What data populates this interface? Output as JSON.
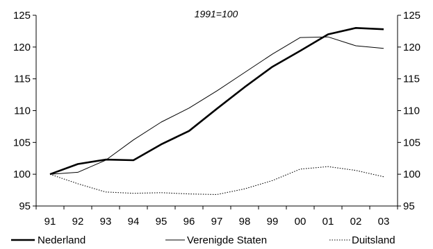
{
  "chart_data": {
    "type": "line",
    "subtitle": "1991=100",
    "x": [
      "91",
      "92",
      "93",
      "94",
      "95",
      "96",
      "97",
      "98",
      "99",
      "00",
      "01",
      "02",
      "03"
    ],
    "ylim": [
      95,
      125
    ],
    "yticks": [
      95,
      100,
      105,
      110,
      115,
      120,
      125
    ],
    "ylabels": [
      "95",
      "100",
      "105",
      "110",
      "115",
      "120",
      "125"
    ],
    "grid": false,
    "legend_position": "bottom",
    "series": [
      {
        "name": "Nederland",
        "style": "thick-solid",
        "color": "#000000",
        "values": [
          100,
          101.6,
          102.3,
          102.2,
          104.7,
          106.8,
          110.3,
          113.7,
          116.9,
          119.4,
          122.0,
          123.0,
          122.8
        ]
      },
      {
        "name": "Verenigde Staten",
        "style": "thin-solid",
        "color": "#000000",
        "values": [
          100,
          100.3,
          102.2,
          105.4,
          108.2,
          110.4,
          113.1,
          116.0,
          118.9,
          121.5,
          121.6,
          120.2,
          119.8
        ]
      },
      {
        "name": "Duitsland",
        "style": "dotted",
        "color": "#000000",
        "values": [
          100,
          98.5,
          97.2,
          97.0,
          97.1,
          96.9,
          96.8,
          97.7,
          99.0,
          100.8,
          101.2,
          100.6,
          99.6
        ]
      }
    ]
  }
}
